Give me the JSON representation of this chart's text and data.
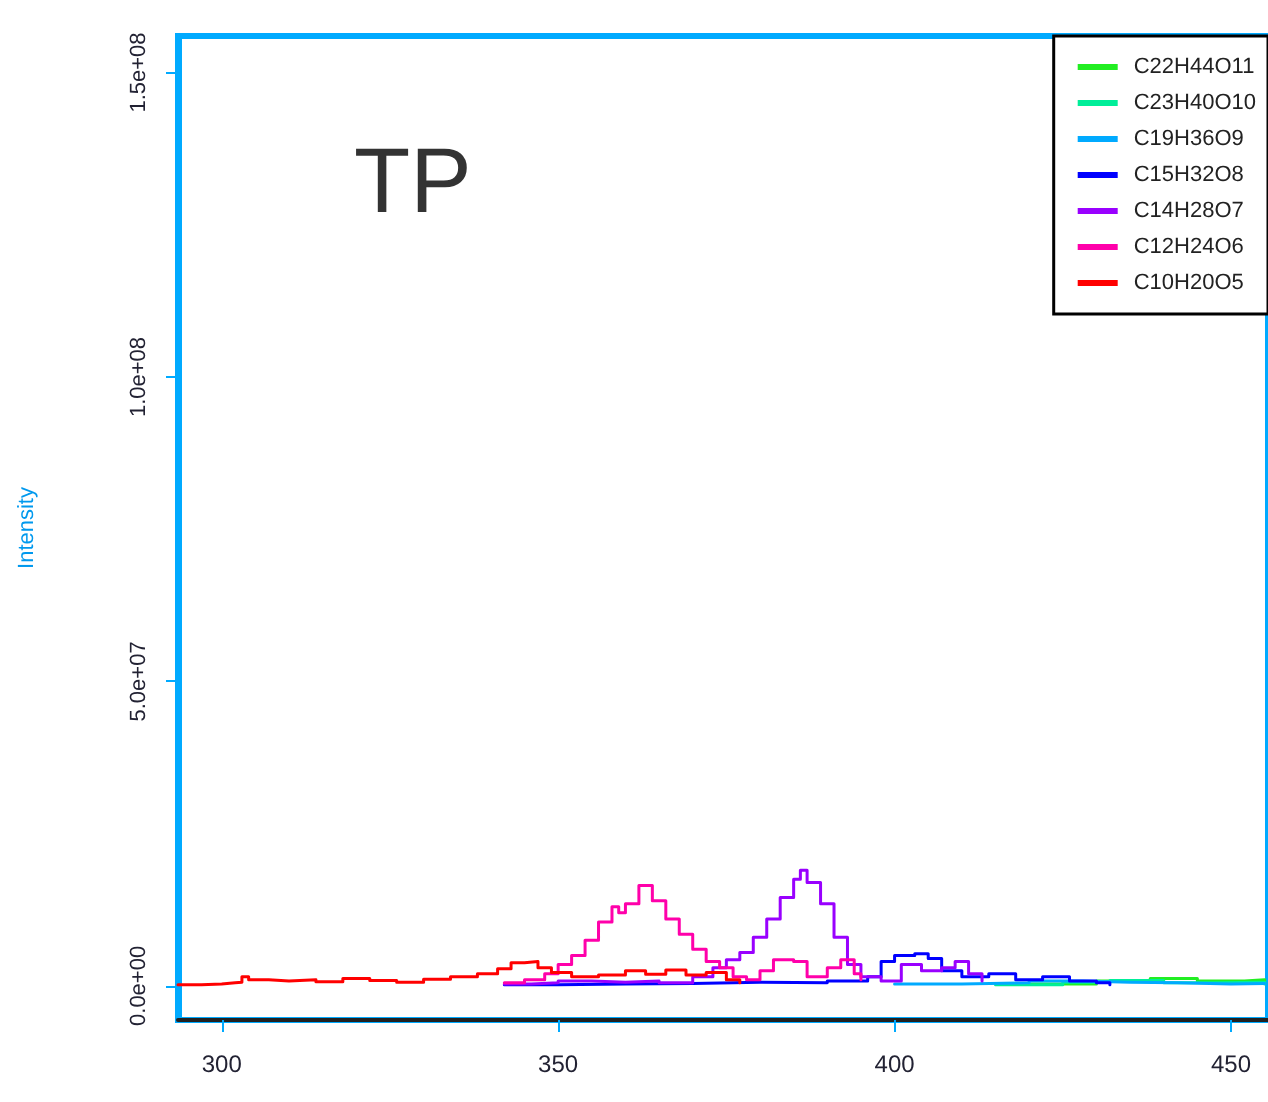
{
  "chart_data": {
    "type": "step",
    "title": "TP",
    "ylabel": "Intensity",
    "xlim": [
      293.5,
      455.5
    ],
    "xticks": [
      300,
      350,
      400,
      450
    ],
    "ylim": [
      -5600000,
      156000000
    ],
    "yticks": [
      {
        "value": 0,
        "label": "0.0e+00"
      },
      {
        "value": 50000000,
        "label": "5.0e+07"
      },
      {
        "value": 100000000,
        "label": "1.0e+08"
      },
      {
        "value": 150000000,
        "label": "1.5e+08"
      }
    ],
    "grid": false,
    "legend": "top right",
    "line_style": "solid",
    "marker": "none",
    "series": [
      {
        "name": "C22H44O11",
        "color": "#22ee22",
        "x": [
          420,
          430,
          438,
          445,
          452,
          455
        ],
        "values": [
          300000,
          800000,
          1200000,
          800000,
          1000000,
          500000
        ]
      },
      {
        "name": "C23H40O10",
        "color": "#00ee99",
        "x": [
          415,
          425,
          432,
          440,
          448,
          455
        ],
        "values": [
          200000,
          600000,
          900000,
          500000,
          600000,
          300000
        ]
      },
      {
        "name": "C19H36O9",
        "color": "#00aaff",
        "x": [
          400,
          410,
          420,
          428,
          435,
          442,
          450,
          455
        ],
        "values": [
          300000,
          500000,
          800000,
          600000,
          500000,
          300000,
          400000,
          300000
        ]
      },
      {
        "name": "C15H32O8",
        "color": "#0000ff",
        "x": [
          342,
          350,
          360,
          370,
          380,
          390,
          396,
          398,
          400,
          403,
          405,
          407,
          410,
          414,
          418,
          422,
          426,
          430,
          432
        ],
        "values": [
          200000,
          300000,
          400000,
          600000,
          500000,
          800000,
          1500000,
          4000000,
          5000000,
          5300000,
          4500000,
          2500000,
          1500000,
          2000000,
          1000000,
          1500000,
          800000,
          500000,
          200000
        ]
      },
      {
        "name": "C14H28O7",
        "color": "#9900ff",
        "x": [
          342,
          346,
          350,
          355,
          360,
          365,
          370,
          373,
          375,
          377,
          379,
          381,
          383,
          385,
          386,
          387,
          389,
          391,
          393,
          395,
          398,
          401,
          404,
          407,
          409,
          411,
          413
        ],
        "values": [
          300000,
          500000,
          800000,
          600000,
          800000,
          500000,
          1500000,
          3000000,
          4300000,
          5500000,
          8000000,
          11000000,
          14500000,
          17500000,
          19000000,
          17000000,
          13500000,
          8000000,
          3500000,
          1500000,
          800000,
          3500000,
          2500000,
          3000000,
          4000000,
          2000000,
          800000
        ]
      },
      {
        "name": "C12H24O6",
        "color": "#ff00aa",
        "x": [
          342,
          345,
          348,
          350,
          352,
          354,
          356,
          358,
          359,
          360,
          362,
          364,
          366,
          368,
          370,
          372,
          374,
          376,
          378,
          380,
          382,
          385,
          387,
          390,
          392,
          394,
          395
        ],
        "values": [
          500000,
          1000000,
          2000000,
          3500000,
          5000000,
          7500000,
          10500000,
          13000000,
          12000000,
          13500000,
          16500000,
          14000000,
          11000000,
          8500000,
          6000000,
          4000000,
          3000000,
          1500000,
          1000000,
          2500000,
          4300000,
          4000000,
          1500000,
          3000000,
          4300000,
          2000000,
          1000000
        ]
      },
      {
        "name": "C10H20O5",
        "color": "#ff0000",
        "x": [
          293.5,
          297,
          300,
          302,
          303,
          304,
          307,
          310,
          314,
          318,
          322,
          326,
          330,
          334,
          338,
          341,
          343,
          345,
          347,
          349,
          352,
          356,
          360,
          363,
          366,
          369,
          372,
          375,
          377
        ],
        "values": [
          200000,
          300000,
          500000,
          600000,
          1500000,
          1000000,
          800000,
          1000000,
          700000,
          1200000,
          900000,
          600000,
          1100000,
          1500000,
          2000000,
          2800000,
          3800000,
          4000000,
          3000000,
          2200000,
          1500000,
          1800000,
          2500000,
          1900000,
          2600000,
          1800000,
          2200000,
          1000000,
          500000
        ]
      }
    ]
  }
}
